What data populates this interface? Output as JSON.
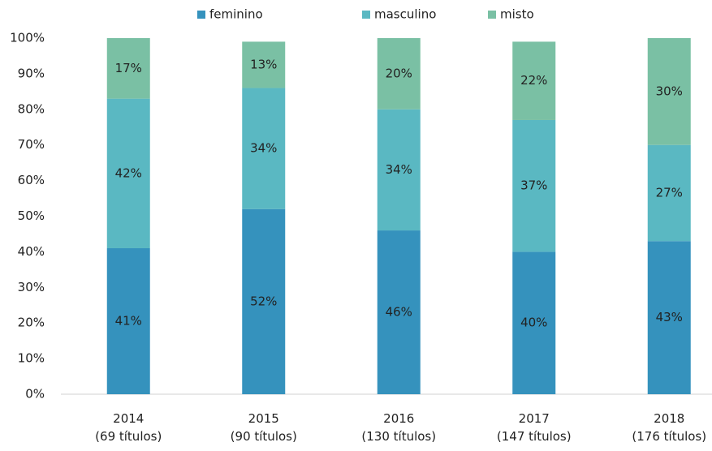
{
  "chart_data": {
    "type": "stacked_bar",
    "categories": [
      [
        "2014",
        "(69 títulos)"
      ],
      [
        "2015",
        "(90 títulos)"
      ],
      [
        "2016",
        "(130 títulos)"
      ],
      [
        "2017",
        "(147 títulos)"
      ],
      [
        "2018",
        "(176 títulos)"
      ]
    ],
    "series": [
      {
        "name": "feminino",
        "color": "#3592bd",
        "values": [
          41,
          52,
          46,
          40,
          43
        ],
        "value_labels": [
          "41%",
          "52%",
          "46%",
          "40%",
          "43%"
        ]
      },
      {
        "name": "masculino",
        "color": "#5ab8c2",
        "values": [
          42,
          34,
          34,
          37,
          27
        ],
        "value_labels": [
          "42%",
          "34%",
          "34%",
          "37%",
          "27%"
        ]
      },
      {
        "name": "misto",
        "color": "#7ac0a4",
        "values": [
          17,
          13,
          20,
          22,
          30
        ],
        "value_labels": [
          "17%",
          "13%",
          "20%",
          "22%",
          "30%"
        ]
      }
    ],
    "ylim": [
      0,
      100
    ],
    "yticks": [
      {
        "value": 0,
        "label": "0%"
      },
      {
        "value": 10,
        "label": "10%"
      },
      {
        "value": 20,
        "label": "20%"
      },
      {
        "value": 30,
        "label": "30%"
      },
      {
        "value": 40,
        "label": "40%"
      },
      {
        "value": 50,
        "label": "50%"
      },
      {
        "value": 60,
        "label": "60%"
      },
      {
        "value": 70,
        "label": "70%"
      },
      {
        "value": 80,
        "label": "80%"
      },
      {
        "value": 90,
        "label": "90%"
      },
      {
        "value": 100,
        "label": "100%"
      }
    ],
    "legend": "top"
  }
}
